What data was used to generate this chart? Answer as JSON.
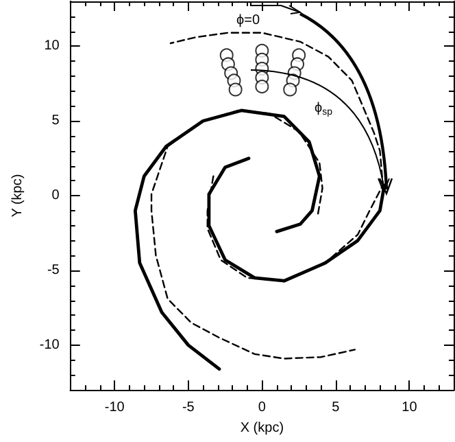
{
  "chart_data": {
    "type": "line",
    "xlabel": "X (kpc)",
    "ylabel": "Y (kpc)",
    "xlim": [
      -13,
      13
    ],
    "ylim": [
      -13,
      13
    ],
    "xticks": [
      -10,
      -5,
      0,
      5,
      10
    ],
    "yticks": [
      -10,
      -5,
      0,
      5,
      10
    ],
    "grid": false,
    "series": [
      {
        "color": "#000000",
        "line_style": "solid",
        "x": [
          1.0,
          2.6,
          3.4,
          3.9,
          3.2,
          1.5,
          -1.4,
          -4.0,
          -6.5,
          -8.0,
          -8.6,
          -8.3,
          -6.8,
          -5.0,
          -2.9
        ],
        "values": [
          -2.4,
          -1.9,
          -1.0,
          1.3,
          3.6,
          5.3,
          5.7,
          5.0,
          3.3,
          1.3,
          -1.0,
          -4.5,
          -7.8,
          -10.0,
          -11.6
        ]
      },
      {
        "color": "#000000",
        "line_style": "solid",
        "x": [
          -0.9,
          -2.5,
          -3.6,
          -3.6,
          -2.5,
          -0.5,
          1.5,
          4.3,
          6.5,
          8.0,
          8.3
        ],
        "values": [
          2.5,
          1.9,
          0.1,
          -2.0,
          -4.3,
          -5.5,
          -5.7,
          -4.5,
          -3.0,
          -1.0,
          0.7
        ]
      },
      {
        "color": "#000000",
        "line_style": "dashed",
        "x": [
          -3.3,
          -3.7,
          -3.7,
          -2.8,
          -1.0,
          1.5,
          4.4,
          6.5,
          7.3,
          8.2,
          8.0,
          7.6,
          6.1,
          4.5,
          2.6,
          0.0,
          -2.3,
          -4.5,
          -6.2
        ],
        "values": [
          1.3,
          -1.0,
          -2.2,
          -4.3,
          -5.5,
          -5.7,
          -4.4,
          -2.6,
          -1.0,
          0.7,
          3.0,
          4.2,
          7.7,
          9.3,
          10.3,
          10.9,
          10.9,
          10.6,
          10.2
        ]
      },
      {
        "color": "#000000",
        "line_style": "dashed",
        "x": [
          3.8,
          4.1,
          3.9,
          2.5,
          0.5,
          -1.6,
          -4.0,
          -6.4,
          -7.5,
          -7.5,
          -7.2,
          -6.4,
          -4.8,
          -2.9,
          -0.5,
          1.5,
          4.0,
          6.3
        ],
        "values": [
          -1.2,
          0.5,
          2.2,
          4.3,
          5.5,
          5.7,
          5.0,
          3.3,
          0.1,
          -1.0,
          -4.0,
          -6.9,
          -8.5,
          -9.5,
          -10.6,
          -10.9,
          -10.8,
          -10.3
        ]
      },
      {
        "type": "scatter",
        "marker": "circle",
        "color": "#000000",
        "x": [
          -2.4,
          -2.3,
          -2.1,
          -1.9,
          -1.8,
          0.0,
          0.0,
          0.0,
          0.0,
          0.0,
          2.5,
          2.4,
          2.2,
          2.1,
          1.9
        ],
        "values": [
          9.4,
          8.8,
          8.2,
          7.7,
          7.1,
          9.7,
          9.1,
          8.5,
          7.9,
          7.3,
          9.4,
          8.8,
          8.2,
          7.7,
          7.1
        ]
      }
    ],
    "annotations": [
      "ϕ=0",
      "ϕ$_{sp}$"
    ]
  }
}
